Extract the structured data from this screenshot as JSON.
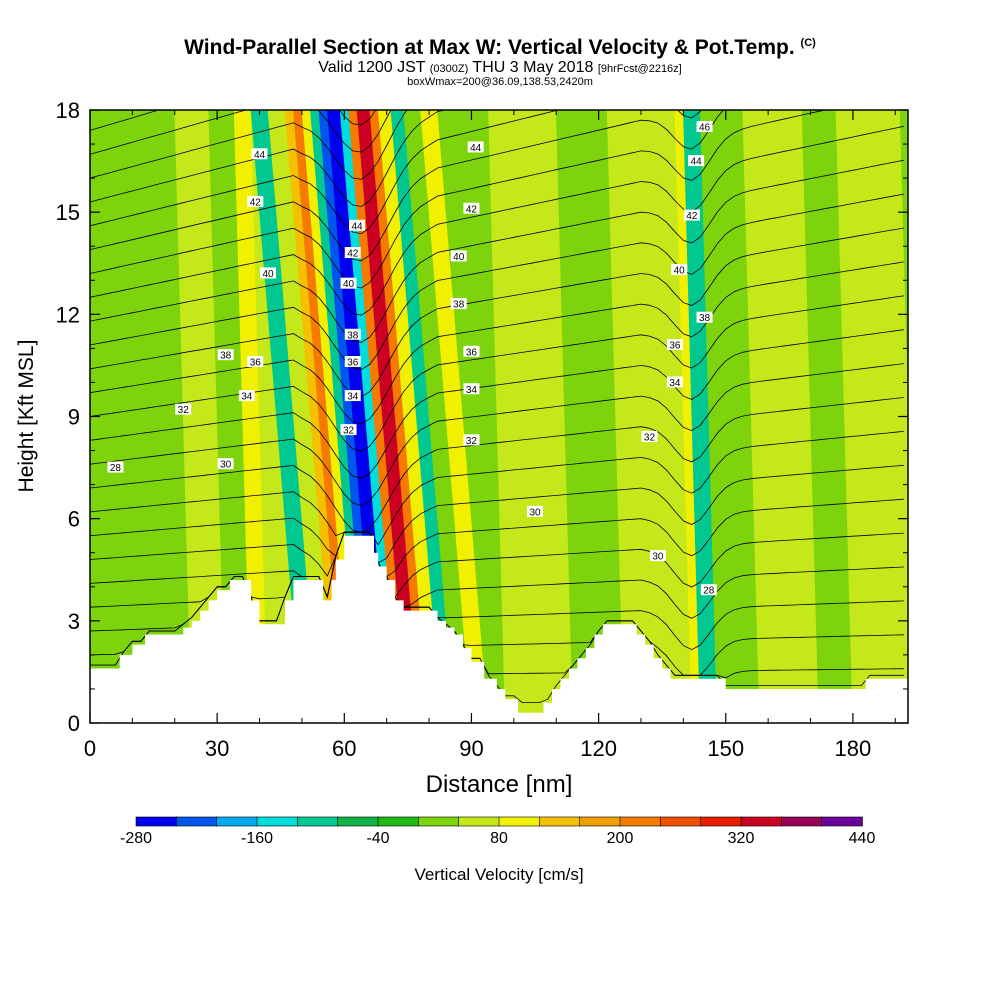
{
  "header": {
    "title": "Wind-Parallel Section at Max W: Vertical Velocity & Pot.Temp.",
    "title_mark": "(C)",
    "valid_prefix": "Valid 1200 JST",
    "valid_utc": "(0300Z)",
    "valid_date": "THU 3 May 2018",
    "forecast": "[9hrFcst@2216z]",
    "box_info": "boxWmax=200@36.09,138.53,2420m"
  },
  "chart_data": {
    "type": "heatmap",
    "xlabel": "Distance [nm]",
    "ylabel": "Height [Kft MSL]",
    "xlim": [
      0,
      193
    ],
    "ylim": [
      0,
      18
    ],
    "x_ticks": [
      0,
      30,
      60,
      90,
      120,
      150,
      180
    ],
    "y_ticks": [
      0,
      3,
      6,
      9,
      12,
      15,
      18
    ],
    "colorbar": {
      "label": "Vertical Velocity [cm/s]",
      "tick_labels": [
        "-280",
        "-160",
        "-40",
        "80",
        "200",
        "320",
        "440"
      ],
      "colors": [
        "#0000ee",
        "#0055ee",
        "#00aaee",
        "#00dddd",
        "#00c890",
        "#11b347",
        "#22b814",
        "#7dd30c",
        "#c4e81a",
        "#f0f000",
        "#f5c000",
        "#f0a000",
        "#f57a00",
        "#f05000",
        "#e82000",
        "#cc0022",
        "#990055",
        "#6a0099"
      ]
    },
    "vertical_velocity_bands": [
      {
        "x": [
          0,
          22
        ],
        "w": 20
      },
      {
        "x": [
          22,
          30
        ],
        "w": 40
      },
      {
        "x": [
          30,
          36
        ],
        "w": 20
      },
      {
        "x": [
          36,
          40
        ],
        "w": 100
      },
      {
        "x": [
          40,
          44
        ],
        "w": 40
      },
      {
        "x": [
          44,
          48
        ],
        "w": -100
      },
      {
        "x": [
          48,
          52
        ],
        "w": 40
      },
      {
        "x": [
          52,
          54
        ],
        "w": 120
      },
      {
        "x": [
          54,
          56
        ],
        "w": 200
      },
      {
        "x": [
          56,
          58
        ],
        "w": 80
      },
      {
        "x": [
          58,
          60
        ],
        "w": -100
      },
      {
        "x": [
          60,
          62
        ],
        "w": -220
      },
      {
        "x": [
          62,
          65
        ],
        "w": -280
      },
      {
        "x": [
          65,
          67
        ],
        "w": -160
      },
      {
        "x": [
          67,
          69
        ],
        "w": 200
      },
      {
        "x": [
          69,
          72
        ],
        "w": 320
      },
      {
        "x": [
          72,
          74
        ],
        "w": 200
      },
      {
        "x": [
          74,
          77
        ],
        "w": 80
      },
      {
        "x": [
          77,
          80
        ],
        "w": -100
      },
      {
        "x": [
          80,
          84
        ],
        "w": 20
      },
      {
        "x": [
          84,
          88
        ],
        "w": 100
      },
      {
        "x": [
          88,
          96
        ],
        "w": 20
      },
      {
        "x": [
          96,
          112
        ],
        "w": 40
      },
      {
        "x": [
          112,
          124
        ],
        "w": 20
      },
      {
        "x": [
          124,
          140
        ],
        "w": 40
      },
      {
        "x": [
          140,
          142
        ],
        "w": 80
      },
      {
        "x": [
          142,
          146
        ],
        "w": -100
      },
      {
        "x": [
          146,
          156
        ],
        "w": 20
      },
      {
        "x": [
          156,
          170
        ],
        "w": 40
      },
      {
        "x": [
          170,
          178
        ],
        "w": 20
      },
      {
        "x": [
          178,
          193
        ],
        "w": 40
      }
    ],
    "terrain": {
      "x": [
        0,
        5,
        7,
        10,
        13,
        16,
        19,
        22,
        24,
        26,
        28,
        30,
        33,
        35,
        36,
        38,
        40,
        42,
        45,
        46,
        48,
        51,
        53,
        55,
        57,
        58,
        60,
        62,
        63,
        65,
        67,
        68,
        70,
        72,
        74,
        76,
        78,
        80,
        82,
        84,
        86,
        88,
        90,
        93,
        96,
        98,
        101,
        103,
        105,
        107,
        109,
        111,
        113,
        115,
        117,
        119,
        121,
        123,
        127,
        129,
        131,
        133,
        135,
        137,
        139,
        141,
        144,
        146,
        150,
        152,
        156,
        160,
        165,
        170,
        175,
        180,
        183,
        185,
        193
      ],
      "height": [
        1.6,
        1.6,
        2.0,
        2.3,
        2.6,
        2.6,
        2.6,
        2.8,
        3.0,
        3.3,
        3.6,
        3.9,
        4.2,
        4.2,
        4.2,
        3.6,
        2.9,
        2.9,
        2.9,
        3.6,
        4.2,
        4.2,
        4.2,
        3.6,
        4.2,
        4.8,
        5.5,
        5.5,
        5.5,
        5.5,
        5.0,
        4.6,
        4.2,
        3.6,
        3.3,
        3.3,
        3.3,
        3.3,
        3.0,
        2.8,
        2.6,
        2.2,
        1.8,
        1.3,
        1.0,
        0.7,
        0.3,
        0.3,
        0.3,
        0.6,
        1.0,
        1.3,
        1.6,
        1.9,
        2.2,
        2.6,
        2.9,
        2.9,
        2.9,
        2.6,
        2.3,
        1.9,
        1.6,
        1.3,
        1.3,
        1.3,
        1.3,
        1.3,
        1.0,
        1.0,
        1.0,
        1.0,
        1.0,
        1.0,
        1.0,
        1.0,
        1.3,
        1.3,
        1.3
      ]
    },
    "theta_contour_labels": [
      {
        "value": "28",
        "x": 6,
        "y": 7.5
      },
      {
        "value": "32",
        "x": 22,
        "y": 9.2
      },
      {
        "value": "30",
        "x": 32,
        "y": 7.6
      },
      {
        "value": "34",
        "x": 37,
        "y": 9.6
      },
      {
        "value": "36",
        "x": 39,
        "y": 10.6
      },
      {
        "value": "38",
        "x": 32,
        "y": 10.8
      },
      {
        "value": "40",
        "x": 42,
        "y": 13.2
      },
      {
        "value": "42",
        "x": 39,
        "y": 15.3
      },
      {
        "value": "44",
        "x": 40,
        "y": 16.7
      },
      {
        "value": "44",
        "x": 63,
        "y": 14.6
      },
      {
        "value": "42",
        "x": 62,
        "y": 13.8
      },
      {
        "value": "40",
        "x": 61,
        "y": 12.9
      },
      {
        "value": "38",
        "x": 62,
        "y": 11.4
      },
      {
        "value": "36",
        "x": 62,
        "y": 10.6
      },
      {
        "value": "34",
        "x": 62,
        "y": 9.6
      },
      {
        "value": "32",
        "x": 61,
        "y": 8.6
      },
      {
        "value": "44",
        "x": 91,
        "y": 16.9
      },
      {
        "value": "42",
        "x": 90,
        "y": 15.1
      },
      {
        "value": "40",
        "x": 87,
        "y": 13.7
      },
      {
        "value": "38",
        "x": 87,
        "y": 12.3
      },
      {
        "value": "36",
        "x": 90,
        "y": 10.9
      },
      {
        "value": "34",
        "x": 90,
        "y": 9.8
      },
      {
        "value": "32",
        "x": 90,
        "y": 8.3
      },
      {
        "value": "30",
        "x": 105,
        "y": 6.2
      },
      {
        "value": "32",
        "x": 132,
        "y": 8.4
      },
      {
        "value": "34",
        "x": 138,
        "y": 10.0
      },
      {
        "value": "36",
        "x": 138,
        "y": 11.1
      },
      {
        "value": "38",
        "x": 145,
        "y": 11.9
      },
      {
        "value": "40",
        "x": 139,
        "y": 13.3
      },
      {
        "value": "42",
        "x": 142,
        "y": 14.9
      },
      {
        "value": "44",
        "x": 143,
        "y": 16.5
      },
      {
        "value": "46",
        "x": 145,
        "y": 17.5
      },
      {
        "value": "30",
        "x": 134,
        "y": 4.9
      },
      {
        "value": "28",
        "x": 146,
        "y": 3.9
      }
    ]
  }
}
